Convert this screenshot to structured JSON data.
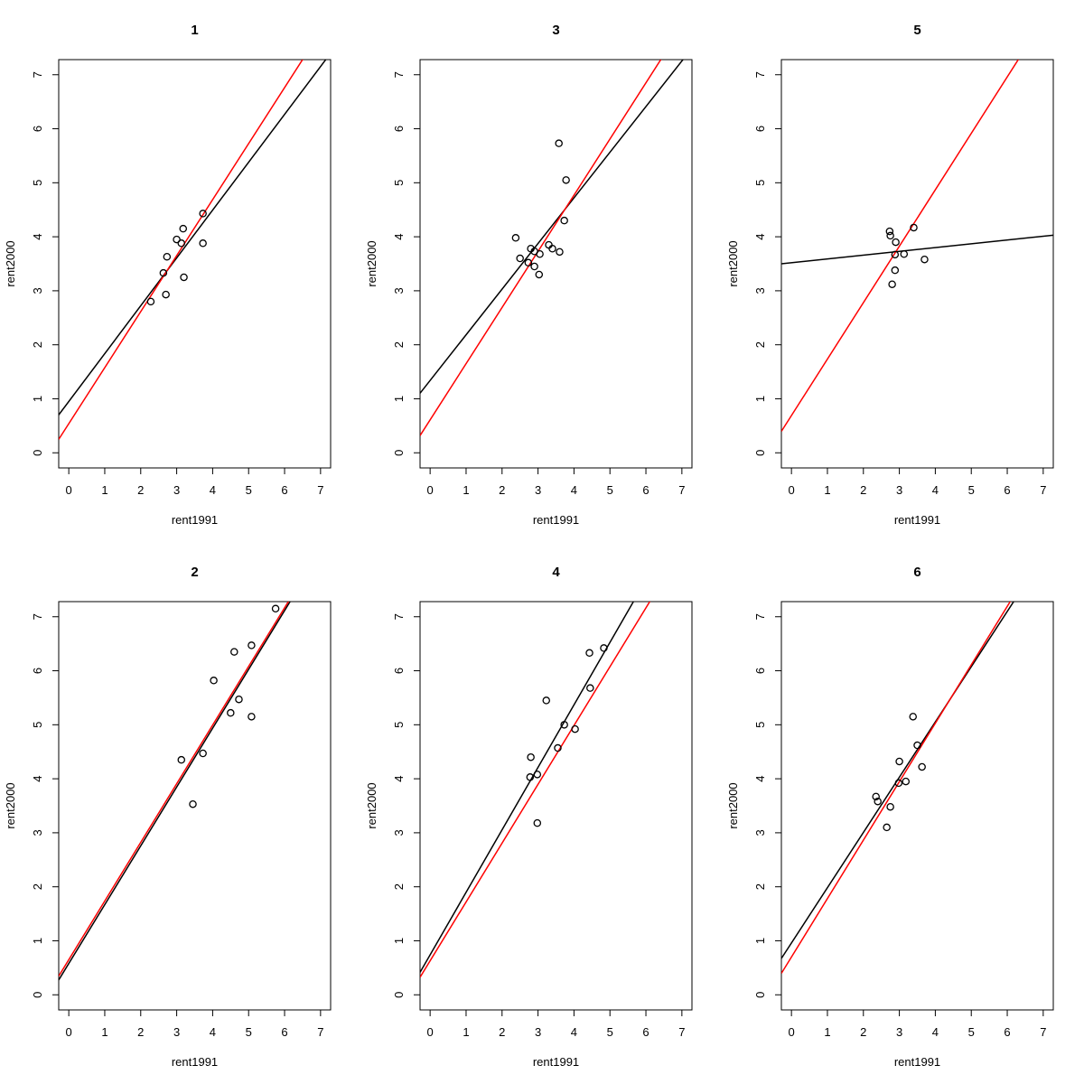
{
  "chart_data": [
    {
      "type": "scatter",
      "title": "1",
      "x_label": "rent1991",
      "y_label": "rent2000",
      "x": [
        2.28,
        2.63,
        2.73,
        2.7,
        3.0,
        3.13,
        3.18,
        3.2,
        3.73,
        3.73
      ],
      "values": [
        2.8,
        3.33,
        3.63,
        2.93,
        3.95,
        3.88,
        4.15,
        3.25,
        4.43,
        3.88
      ],
      "lines": [
        {
          "color": "#000000",
          "intercept": 0.95,
          "slope": 0.886
        },
        {
          "color": "#ff0000",
          "intercept": 0.54,
          "slope": 1.037
        }
      ],
      "xlim": [
        -0.28,
        7.28
      ],
      "ylim": [
        -0.28,
        7.28
      ],
      "xticks": [
        0,
        1,
        2,
        3,
        4,
        5,
        6,
        7
      ],
      "yticks": [
        0,
        1,
        2,
        3,
        4,
        5,
        6,
        7
      ]
    },
    {
      "type": "scatter",
      "title": "3",
      "x_label": "rent1991",
      "y_label": "rent2000",
      "x": [
        2.38,
        2.5,
        2.73,
        2.8,
        2.9,
        2.9,
        3.03,
        3.05,
        3.3,
        3.4,
        3.6,
        3.58,
        3.73,
        3.78
      ],
      "values": [
        3.98,
        3.6,
        3.52,
        3.78,
        3.73,
        3.45,
        3.3,
        3.68,
        3.85,
        3.78,
        3.72,
        5.73,
        4.3,
        5.05
      ],
      "lines": [
        {
          "color": "#000000",
          "intercept": 1.34,
          "slope": 0.845
        },
        {
          "color": "#ff0000",
          "intercept": 0.61,
          "slope": 1.04
        }
      ],
      "xlim": [
        -0.28,
        7.28
      ],
      "ylim": [
        -0.28,
        7.28
      ],
      "xticks": [
        0,
        1,
        2,
        3,
        4,
        5,
        6,
        7
      ],
      "yticks": [
        0,
        1,
        2,
        3,
        4,
        5,
        6,
        7
      ]
    },
    {
      "type": "scatter",
      "title": "5",
      "x_label": "rent1991",
      "y_label": "rent2000",
      "x": [
        2.73,
        2.75,
        2.9,
        2.88,
        2.88,
        2.8,
        3.13,
        3.4,
        3.7
      ],
      "values": [
        4.1,
        4.02,
        3.9,
        3.67,
        3.38,
        3.12,
        3.68,
        4.17,
        3.58
      ],
      "lines": [
        {
          "color": "#000000",
          "intercept": 3.52,
          "slope": 0.07
        },
        {
          "color": "#ff0000",
          "intercept": 0.69,
          "slope": 1.045
        }
      ],
      "xlim": [
        -0.28,
        7.28
      ],
      "ylim": [
        -0.28,
        7.28
      ],
      "xticks": [
        0,
        1,
        2,
        3,
        4,
        5,
        6,
        7
      ],
      "yticks": [
        0,
        1,
        2,
        3,
        4,
        5,
        6,
        7
      ]
    },
    {
      "type": "scatter",
      "title": "2",
      "x_label": "rent1991",
      "y_label": "rent2000",
      "x": [
        3.13,
        3.45,
        3.73,
        4.03,
        4.5,
        4.6,
        4.73,
        5.08,
        5.08,
        5.75
      ],
      "values": [
        4.35,
        3.53,
        4.47,
        5.82,
        5.22,
        6.35,
        5.47,
        6.47,
        5.15,
        7.15
      ],
      "lines": [
        {
          "color": "#000000",
          "intercept": 0.58,
          "slope": 1.089
        },
        {
          "color": "#ff0000",
          "intercept": 0.65,
          "slope": 1.086
        }
      ],
      "xlim": [
        -0.28,
        7.28
      ],
      "ylim": [
        -0.28,
        7.28
      ],
      "xticks": [
        0,
        1,
        2,
        3,
        4,
        5,
        6,
        7
      ],
      "yticks": [
        0,
        1,
        2,
        3,
        4,
        5,
        6,
        7
      ]
    },
    {
      "type": "scatter",
      "title": "4",
      "x_label": "rent1991",
      "y_label": "rent2000",
      "x": [
        2.78,
        2.8,
        2.98,
        2.98,
        3.23,
        3.55,
        3.73,
        4.03,
        4.43,
        4.45,
        4.83
      ],
      "values": [
        4.03,
        4.4,
        4.08,
        3.18,
        5.45,
        4.57,
        5.0,
        4.92,
        6.33,
        5.68,
        6.42
      ],
      "lines": [
        {
          "color": "#000000",
          "intercept": 0.74,
          "slope": 1.157
        },
        {
          "color": "#ff0000",
          "intercept": 0.63,
          "slope": 1.089
        }
      ],
      "xlim": [
        -0.28,
        7.28
      ],
      "ylim": [
        -0.28,
        7.28
      ],
      "xticks": [
        0,
        1,
        2,
        3,
        4,
        5,
        6,
        7
      ],
      "yticks": [
        0,
        1,
        2,
        3,
        4,
        5,
        6,
        7
      ]
    },
    {
      "type": "scatter",
      "title": "6",
      "x_label": "rent1991",
      "y_label": "rent2000",
      "x": [
        2.35,
        2.4,
        2.65,
        2.75,
        3.0,
        2.98,
        3.18,
        3.38,
        3.5,
        3.63
      ],
      "values": [
        3.67,
        3.58,
        3.1,
        3.48,
        4.32,
        3.92,
        3.95,
        5.15,
        4.62,
        4.22
      ],
      "lines": [
        {
          "color": "#000000",
          "intercept": 0.96,
          "slope": 1.023
        },
        {
          "color": "#ff0000",
          "intercept": 0.7,
          "slope": 1.082
        }
      ],
      "xlim": [
        -0.28,
        7.28
      ],
      "ylim": [
        -0.28,
        7.28
      ],
      "xticks": [
        0,
        1,
        2,
        3,
        4,
        5,
        6,
        7
      ],
      "yticks": [
        0,
        1,
        2,
        3,
        4,
        5,
        6,
        7
      ]
    }
  ]
}
